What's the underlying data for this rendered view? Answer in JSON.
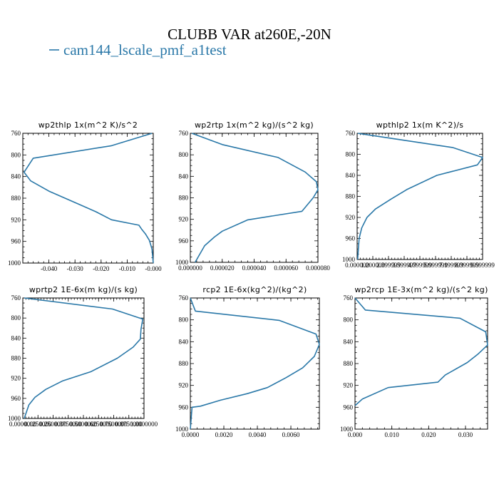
{
  "title": "CLUBB VAR at260E,-20N",
  "legend": {
    "label": "cam144_lscale_pmf_a1test",
    "color": "#2a78a8"
  },
  "chart_data": [
    {
      "type": "line",
      "title": "wp2thlp   1x(m^2 K)/s^2",
      "ylim": [
        760,
        1000
      ],
      "yticks": [
        "760",
        "800",
        "840",
        "880",
        "920",
        "960",
        "1000"
      ],
      "xlim": [
        -0.05,
        0.0
      ],
      "xticks": [
        {
          "v": -0.04,
          "label": "-0.040"
        },
        {
          "v": -0.03,
          "label": "-0.030"
        },
        {
          "v": -0.02,
          "label": "-0.020"
        },
        {
          "v": -0.01,
          "label": "-0.010"
        },
        {
          "v": 0.0,
          "label": "-0.000"
        }
      ],
      "series": [
        {
          "x": [
            -0.0005,
            -0.016,
            -0.046,
            -0.0495,
            -0.047,
            -0.04,
            -0.03,
            -0.022,
            -0.016,
            -0.0055,
            -0.0045,
            -0.003,
            -0.0015,
            -0.0005,
            0.0
          ],
          "y": [
            760,
            783,
            806,
            832,
            848,
            867,
            888,
            905,
            920,
            930,
            937,
            946,
            958,
            974,
            1000
          ]
        }
      ]
    },
    {
      "type": "line",
      "title": "wp2rtp   1x(m^2 kg)/(s^2 kg)",
      "ylim": [
        760,
        1000
      ],
      "yticks": [
        "760",
        "800",
        "840",
        "880",
        "920",
        "960",
        "1000"
      ],
      "xlim": [
        0,
        8e-05
      ],
      "xticks": [
        {
          "v": 0.0,
          "label": "0.000000"
        },
        {
          "v": 2e-05,
          "label": "0.000020"
        },
        {
          "v": 4e-05,
          "label": "0.000040"
        },
        {
          "v": 6e-05,
          "label": "0.000060"
        },
        {
          "v": 8e-05,
          "label": "0.000080"
        }
      ],
      "series": [
        {
          "x": [
            1e-06,
            2e-05,
            5.5e-05,
            7.2e-05,
            7.9e-05,
            8e-05,
            7.7e-05,
            7e-05,
            3.6e-05,
            2e-05,
            1.5e-05,
            9e-06,
            3e-06
          ],
          "y": [
            760,
            781,
            805,
            832,
            850,
            865,
            880,
            905,
            921,
            942,
            953,
            969,
            1000
          ]
        }
      ]
    },
    {
      "type": "line",
      "title": "wpthlp2   1x(m K^2)/s",
      "ylim": [
        760,
        1000
      ],
      "yticks": [
        "760",
        "800",
        "840",
        "880",
        "920",
        "960",
        "1000"
      ],
      "xlim": [
        0.0,
        9.6
      ],
      "xticks": [
        {
          "v": 0.0,
          "label": "0.000000"
        },
        {
          "v": 1.2,
          "label": "1.200000"
        },
        {
          "v": 2.4,
          "label": "2.399999"
        },
        {
          "v": 3.6,
          "label": "3.599999"
        },
        {
          "v": 4.8,
          "label": "4.799999"
        },
        {
          "v": 6.0,
          "label": "5.999999"
        },
        {
          "v": 7.2,
          "label": "7.199999"
        },
        {
          "v": 8.4,
          "label": "8.399999"
        },
        {
          "v": 9.6,
          "label": "9.599999"
        }
      ],
      "series": [
        {
          "x": [
            0.05,
            2.2,
            7.3,
            9.6,
            9.2,
            6.1,
            3.8,
            2.6,
            1.4,
            0.75,
            0.35,
            0.15,
            0.04
          ],
          "y": [
            760,
            768,
            787,
            806,
            820,
            840,
            867,
            885,
            904,
            920,
            940,
            960,
            1000
          ]
        }
      ]
    },
    {
      "type": "line",
      "title": "wprtp2   1E-6x(m kg)/(s kg)",
      "ylim": [
        760,
        1000
      ],
      "yticks": [
        "760",
        "800",
        "840",
        "880",
        "920",
        "960",
        "1000"
      ],
      "xlim": [
        0.0,
        1.0
      ],
      "xticks": [
        {
          "v": 0.0,
          "label": "0.0000000"
        },
        {
          "v": 0.125,
          "label": "0.1250000"
        },
        {
          "v": 0.25,
          "label": "0.2500000"
        },
        {
          "v": 0.375,
          "label": "0.3750000"
        },
        {
          "v": 0.5,
          "label": "0.5000000"
        },
        {
          "v": 0.625,
          "label": "0.6250000"
        },
        {
          "v": 0.75,
          "label": "0.7500000"
        },
        {
          "v": 0.875,
          "label": "0.8750000"
        },
        {
          "v": 1.0,
          "label": "1.0000000"
        }
      ],
      "series": [
        {
          "x": [
            0.012,
            0.74,
            0.99,
            0.975,
            0.97,
            0.91,
            0.78,
            0.56,
            0.33,
            0.19,
            0.1,
            0.05,
            0.012
          ],
          "y": [
            760,
            782,
            802,
            822,
            842,
            858,
            880,
            907,
            925,
            942,
            958,
            973,
            1000
          ]
        }
      ]
    },
    {
      "type": "line",
      "title": "rcp2   1E-6x(kg^2)/(kg^2)",
      "ylim": [
        760,
        1000
      ],
      "yticks": [
        "760",
        "800",
        "840",
        "880",
        "920",
        "960",
        "1000"
      ],
      "xlim": [
        0.0,
        0.0077
      ],
      "xticks": [
        {
          "v": 0.0,
          "label": "0.0000"
        },
        {
          "v": 0.002,
          "label": "0.0020"
        },
        {
          "v": 0.004,
          "label": "0.0040"
        },
        {
          "v": 0.006,
          "label": "0.0060"
        }
      ],
      "series": [
        {
          "x": [
            0.0,
            0.0003,
            0.0053,
            0.0075,
            0.0077,
            0.0074,
            0.0067,
            0.0057,
            0.0046,
            0.0034,
            0.0018,
            0.0006,
            0.0001,
            0.0
          ],
          "y": [
            760,
            784,
            801,
            826,
            845,
            867,
            888,
            906,
            924,
            935,
            947,
            958,
            960,
            1000
          ]
        }
      ]
    },
    {
      "type": "line",
      "title": "wp2rcp   1E-3x(m^2 kg)/(s^2 kg)",
      "ylim": [
        760,
        1000
      ],
      "yticks": [
        "760",
        "800",
        "840",
        "880",
        "920",
        "960",
        "1000"
      ],
      "xlim": [
        0.0,
        0.036
      ],
      "xticks": [
        {
          "v": 0.0,
          "label": "0.000"
        },
        {
          "v": 0.01,
          "label": "0.010"
        },
        {
          "v": 0.02,
          "label": "0.020"
        },
        {
          "v": 0.03,
          "label": "0.030"
        }
      ],
      "series": [
        {
          "x": [
            0.0,
            0.0028,
            0.0285,
            0.0355,
            0.036,
            0.0335,
            0.0305,
            0.0245,
            0.0225,
            0.009,
            0.002,
            0.0
          ],
          "y": [
            760,
            782,
            797,
            822,
            846,
            862,
            878,
            901,
            914,
            924,
            945,
            957
          ]
        }
      ]
    }
  ]
}
